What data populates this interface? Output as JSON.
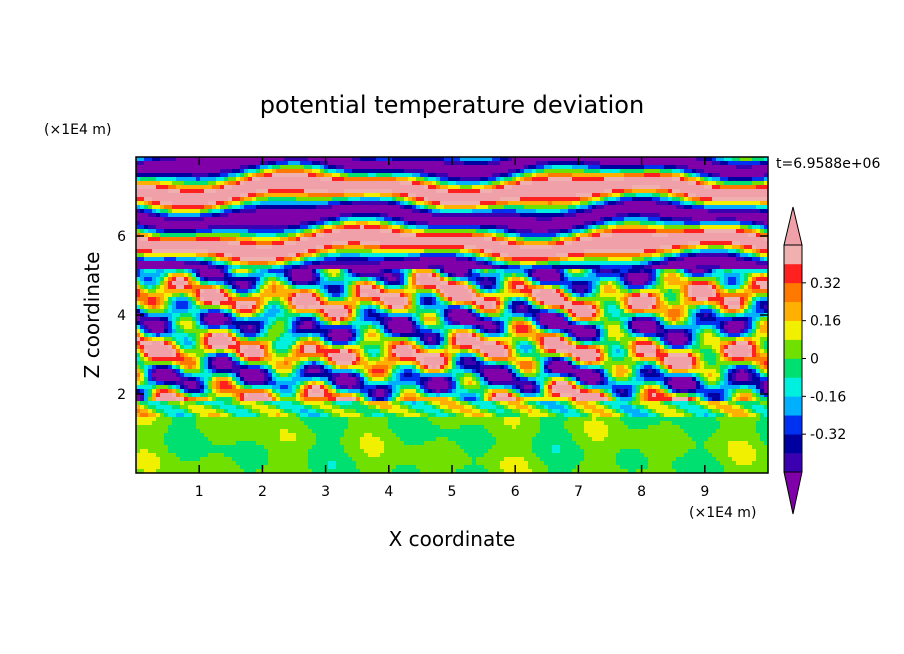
{
  "chart_data": {
    "type": "heatmap",
    "title": "potential temperature deviation",
    "xlabel": "X coordinate",
    "ylabel": "Z coordinate",
    "x_unit": "(×1E4 m)",
    "y_unit": "(×1E4 m)",
    "time_label": "t=6.9588e+06",
    "xlim": [
      0,
      10
    ],
    "ylim": [
      0,
      8
    ],
    "x_ticks": [
      "1",
      "2",
      "3",
      "4",
      "5",
      "6",
      "7",
      "8",
      "9"
    ],
    "y_ticks": [
      "2",
      "4",
      "6"
    ],
    "grid": false,
    "legend": "right",
    "colorbar": {
      "bounds": [
        -0.48,
        -0.4,
        -0.32,
        -0.24,
        -0.16,
        -0.08,
        0,
        0.08,
        0.16,
        0.24,
        0.32,
        0.4,
        0.48
      ],
      "colors": [
        "#7f00a8",
        "#3b00b0",
        "#0000a0",
        "#0030f0",
        "#00b0ff",
        "#00f0e0",
        "#00e070",
        "#70e000",
        "#f0f000",
        "#ffb000",
        "#ff7800",
        "#ff2020",
        "#f0b0b0",
        "#f0a0a8"
      ],
      "tick_labels": [
        "0.32",
        "0.16",
        "0",
        "-0.16",
        "-0.32"
      ],
      "tick_values": [
        0.32,
        0.16,
        0,
        -0.16,
        -0.32
      ]
    },
    "description": "Stratified layered field; lower region z<2 mostly near-zero (green); upper region alternating strong positive (pink) and negative (purple) horizontal bands with turbulent mixing between z≈2 and z≈5."
  }
}
